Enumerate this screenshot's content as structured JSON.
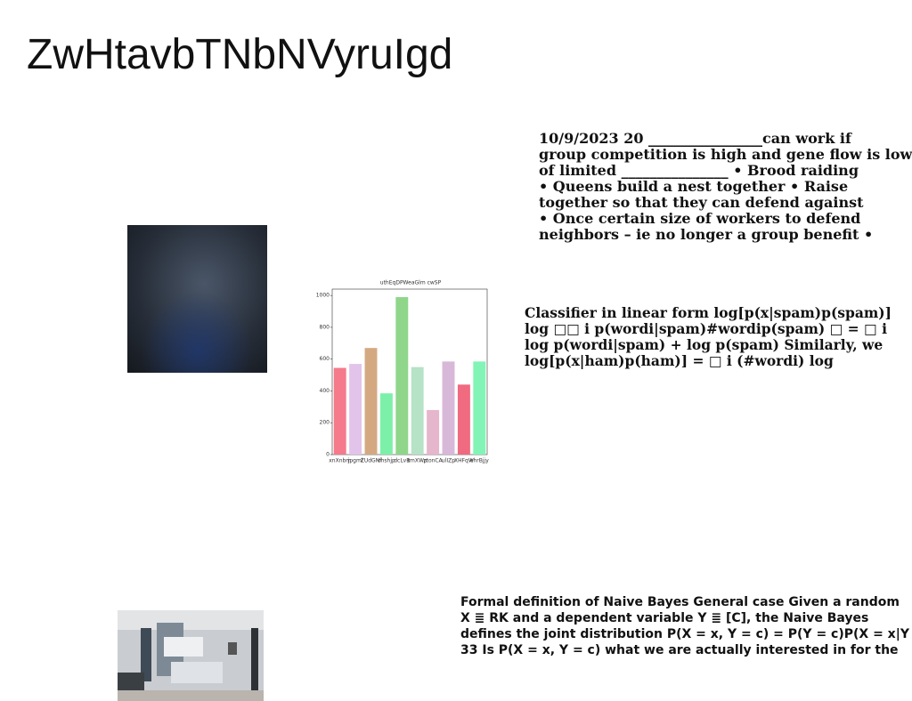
{
  "title": "ZwHtavbTNbNVyruIgd",
  "blocks": [
    {
      "lines": [
        "10/9/2023 20 ________________can work if",
        "group competition is high and gene flow is low",
        "of limited _______________ • Brood raiding",
        "• Queens build a nest together • Raise",
        "together so that they can defend against",
        "• Once certain size of workers to defend",
        "neighbors – ie no longer a group benefit •"
      ]
    },
    {
      "lines": [
        "Classifier in linear form log[p(x|spam)p(spam)]",
        "log □□ i p(wordi|spam)#wordip(spam) □ = □ i",
        "log p(wordi|spam) + log p(spam) Similarly, we",
        "log[p(x|ham)p(ham)] = □ i (#wordi) log"
      ]
    },
    {
      "lines": [
        "Formal definition of Naive Bayes General case Given a random",
        "X ≣ RK and a dependent variable Y ≣ [C], the Naive Bayes",
        "defines the joint distribution P(X = x, Y = c) = P(Y = c)P(X = x|Y =",
        "33 Is P(X = x, Y = c) what we are actually interested in for the"
      ]
    }
  ],
  "chart_data": {
    "type": "bar",
    "title": "uthEqDPWeaGlm cwSP",
    "categories": [
      "xnXnbm",
      "jpgml",
      "ZUdGNf",
      "ohshjp",
      "dcLvB",
      "tmXWp",
      "ztonCA",
      "ulIZp",
      "XHFqW",
      "ehrBjjy"
    ],
    "values": [
      545,
      570,
      670,
      385,
      990,
      550,
      280,
      585,
      440,
      585
    ],
    "colors": [
      "#f47a8c",
      "#e2c4ea",
      "#d4a982",
      "#7cf0a8",
      "#8fd68a",
      "#b6e2c6",
      "#e6b6cc",
      "#d8b8d8",
      "#f06a80",
      "#82f4b6"
    ],
    "ylim": [
      0,
      1040
    ],
    "yticks": [
      0,
      200,
      400,
      600,
      800,
      1000
    ]
  }
}
